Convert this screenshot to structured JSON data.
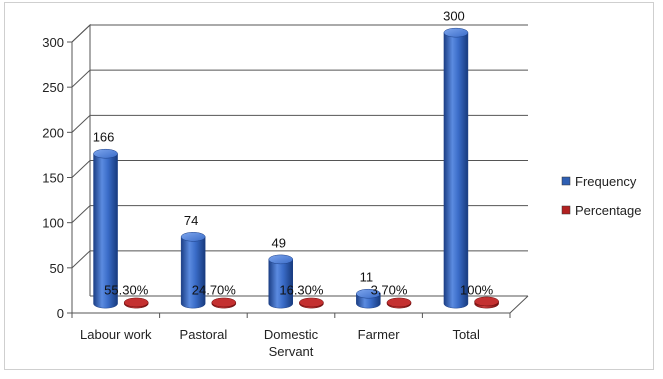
{
  "chart_data": {
    "type": "bar",
    "title": "",
    "xlabel": "",
    "ylabel": "",
    "categories": [
      "Labour work",
      "Pastoral",
      "Domestic Servant",
      "Farmer",
      "Total"
    ],
    "category_lines": [
      [
        "Labour work"
      ],
      [
        "Pastoral"
      ],
      [
        "Domestic",
        "Servant"
      ],
      [
        "Farmer"
      ],
      [
        "Total"
      ]
    ],
    "series": [
      {
        "name": "Frequency",
        "values": [
          166,
          74,
          49,
          11,
          300
        ],
        "labels": [
          "166",
          "74",
          "49",
          "11",
          "300"
        ],
        "color": "#2f5fb3"
      },
      {
        "name": "Percentage",
        "values": [
          55.3,
          24.7,
          16.3,
          3.7,
          100
        ],
        "labels": [
          "55.30%",
          "24.70%",
          "16.30%",
          "3.70%",
          "100%"
        ],
        "color": "#b22222"
      }
    ],
    "ylim": [
      0,
      300
    ],
    "yticks": [
      0,
      50,
      100,
      150,
      200,
      250,
      300
    ],
    "grid": true,
    "legend_position": "right",
    "style": "3d-cylinder"
  }
}
